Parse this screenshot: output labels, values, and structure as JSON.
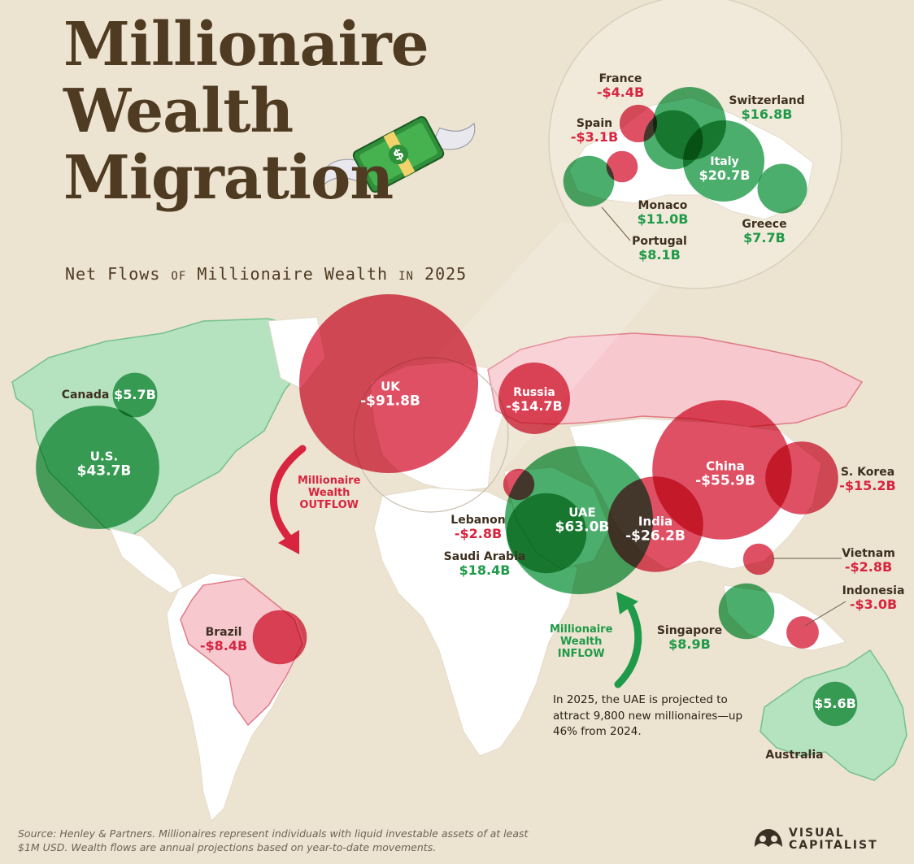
{
  "title": {
    "line1": "Millionaire",
    "line2": "Wealth",
    "line3": "Migration"
  },
  "subtitle": {
    "part1": "Net Flows",
    "part2": "OF",
    "part3": "Millionaire Wealth",
    "part4": "IN",
    "part5": "2025"
  },
  "countries": [
    {
      "name": "UK",
      "value": "-$91.8B",
      "amount_billion": -91.8
    },
    {
      "name": "China",
      "value": "-$55.9B",
      "amount_billion": -55.9
    },
    {
      "name": "U.S.",
      "value": "$43.7B",
      "amount_billion": 43.7
    },
    {
      "name": "UAE",
      "value": "$63.0B",
      "amount_billion": 63.0
    },
    {
      "name": "India",
      "value": "-$26.2B",
      "amount_billion": -26.2
    },
    {
      "name": "Russia",
      "value": "-$14.7B",
      "amount_billion": -14.7
    },
    {
      "name": "S. Korea",
      "value": "-$15.2B",
      "amount_billion": -15.2
    },
    {
      "name": "Saudi Arabia",
      "value": "$18.4B",
      "amount_billion": 18.4
    },
    {
      "name": "Singapore",
      "value": "$8.9B",
      "amount_billion": 8.9
    },
    {
      "name": "Brazil",
      "value": "-$8.4B",
      "amount_billion": -8.4
    },
    {
      "name": "Canada",
      "value": "$5.7B",
      "amount_billion": 5.7
    },
    {
      "name": "Australia",
      "value": "$5.6B",
      "amount_billion": 5.6
    },
    {
      "name": "Lebanon",
      "value": "-$2.8B",
      "amount_billion": -2.8
    },
    {
      "name": "Vietnam",
      "value": "-$2.8B",
      "amount_billion": -2.8
    },
    {
      "name": "Indonesia",
      "value": "-$3.0B",
      "amount_billion": -3.0
    }
  ],
  "europe_inset": [
    {
      "name": "France",
      "value": "-$4.4B",
      "amount_billion": -4.4
    },
    {
      "name": "Spain",
      "value": "-$3.1B",
      "amount_billion": -3.1
    },
    {
      "name": "Switzerland",
      "value": "$16.8B",
      "amount_billion": 16.8
    },
    {
      "name": "Italy",
      "value": "$20.7B",
      "amount_billion": 20.7
    },
    {
      "name": "Monaco",
      "value": "$11.0B",
      "amount_billion": 11.0
    },
    {
      "name": "Greece",
      "value": "$7.7B",
      "amount_billion": 7.7
    },
    {
      "name": "Portugal",
      "value": "$8.1B",
      "amount_billion": 8.1
    }
  ],
  "flows": {
    "outflow": {
      "line1": "Millionaire",
      "line2": "Wealth",
      "line3": "OUTFLOW"
    },
    "inflow": {
      "line1": "Millionaire",
      "line2": "Wealth",
      "line3": "INFLOW"
    }
  },
  "note": "In 2025, the UAE is projected to attract 9,800 new millionaires—up 46% from 2024.",
  "source": "Source: Henley & Partners. Millionaires represent individuals with liquid investable assets of at least $1M USD. Wealth flows are annual projections based on year-to-date movements.",
  "brand": {
    "line1": "VISUAL",
    "line2": "CAPITALIST"
  },
  "colors": {
    "positive": "#1f9a48",
    "negative": "#d8243e",
    "background": "#ece3d1"
  }
}
